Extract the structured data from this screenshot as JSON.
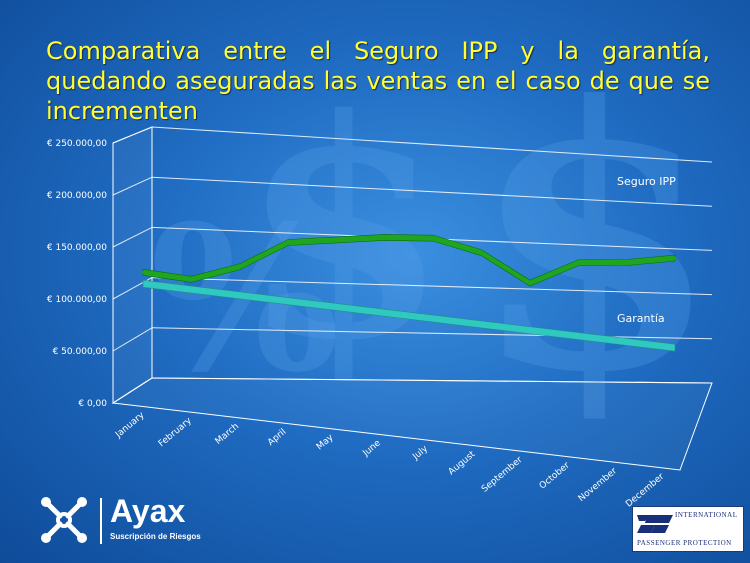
{
  "slide": {
    "title": "Comparativa entre el Seguro IPP y la garantía, quedando aseguradas las ventas en el caso de que se incrementen"
  },
  "colors": {
    "title": "#ffff33",
    "seguro_line": "#1fa51f",
    "garantia_band": "#2fc9c0",
    "axis_text": "#ffffff",
    "grid": "#ffffff"
  },
  "chart_data": {
    "type": "line",
    "view": "3d-perspective",
    "categories": [
      "January",
      "February",
      "March",
      "April",
      "May",
      "June",
      "July",
      "August",
      "September",
      "October",
      "November",
      "December"
    ],
    "y_ticks": [
      "€ 0,00",
      "€ 50.000,00",
      "€ 100.000,00",
      "€ 150.000,00",
      "€ 200.000,00",
      "€ 250.000,00"
    ],
    "ylim": [
      0,
      250000
    ],
    "grid": true,
    "series": [
      {
        "name": "Seguro IPP",
        "values": [
          110000,
          109000,
          126000,
          154000,
          162000,
          170000,
          175000,
          167000,
          144000,
          169000,
          175000,
          185000
        ]
      },
      {
        "name": "Garantía",
        "values": [
          100000,
          100000,
          100000,
          100000,
          100000,
          100000,
          100000,
          100000,
          100000,
          100000,
          100000,
          100000
        ]
      }
    ],
    "labels": [
      "Seguro IPP",
      "Garantía"
    ]
  },
  "logos": {
    "ayax_name": "Ayax",
    "ayax_sub": "Suscripción de Riesgos",
    "ipp_line1": "INTERNATIONAL",
    "ipp_line2": "PASSENGER PROTECTION"
  }
}
